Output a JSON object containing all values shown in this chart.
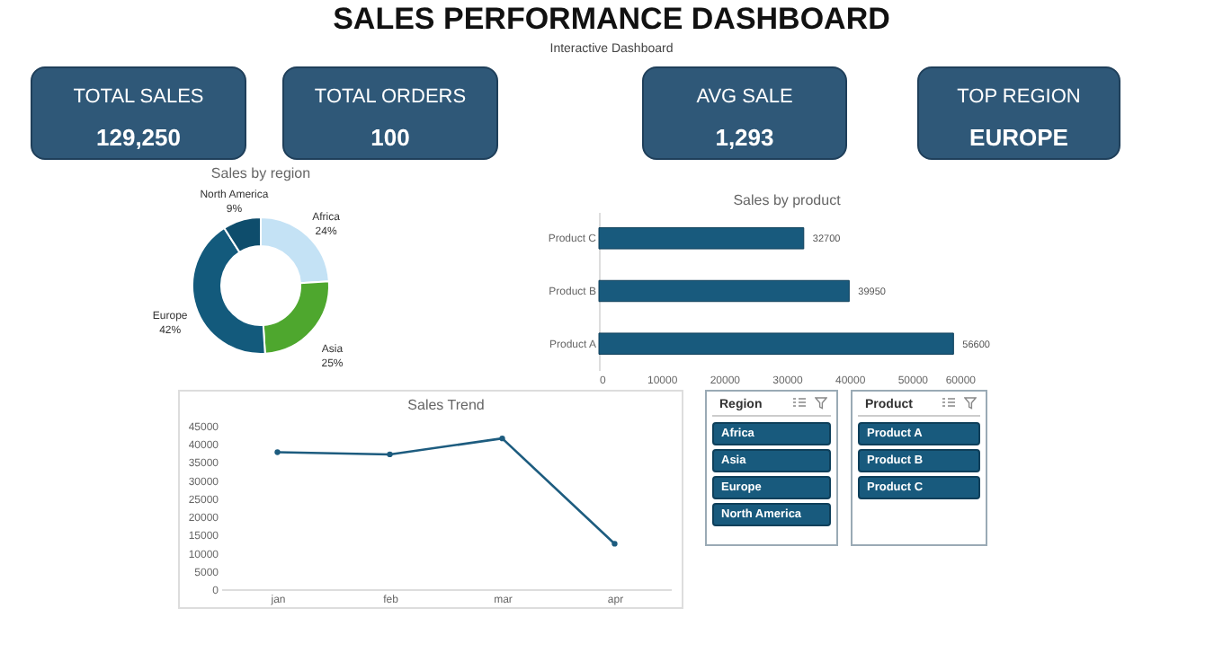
{
  "chart_data": [
    {
      "type": "other",
      "title": "SALES PERFORMANCE DASHBOARD",
      "subtitle": "Interactive Dashboard"
    },
    {
      "type": "other",
      "title": "TOTAL SALES",
      "annotations": [
        "129,250"
      ]
    },
    {
      "type": "other",
      "title": "TOTAL ORDERS",
      "annotations": [
        "100"
      ]
    },
    {
      "type": "other",
      "title": "AVG SALE",
      "annotations": [
        "1,293"
      ]
    },
    {
      "type": "other",
      "title": "TOP REGION",
      "annotations": [
        "EUROPE"
      ]
    },
    {
      "type": "donut",
      "title": "Sales by  region",
      "categories": [
        "Africa",
        "Asia",
        "Europe",
        "North America"
      ],
      "values": [
        24,
        25,
        42,
        9
      ],
      "value_labels": [
        "24%",
        "25%",
        "42%",
        "9%"
      ],
      "colors": [
        "#c4e2f5",
        "#4ea72e",
        "#135a7c",
        "#0e4d6c"
      ]
    },
    {
      "type": "bar",
      "title": "Sales by product",
      "orientation": "horizontal",
      "categories": [
        "Product C",
        "Product B",
        "Product A"
      ],
      "values": [
        32700,
        39950,
        56600
      ],
      "color": "#185a7d",
      "xlim": [
        0,
        60000
      ],
      "xticks": [
        0,
        10000,
        20000,
        30000,
        40000,
        50000,
        60000
      ],
      "data_labels": true
    },
    {
      "type": "line",
      "title": "Sales Trend",
      "categories": [
        "jan",
        "feb",
        "mar",
        "apr"
      ],
      "values": [
        37700,
        37100,
        41500,
        12500
      ],
      "color": "#1d5c7f",
      "ylim": [
        0,
        45000
      ],
      "yticks": [
        0,
        5000,
        10000,
        15000,
        20000,
        25000,
        30000,
        35000,
        40000,
        45000
      ],
      "marker": "circle",
      "line_style": "solid"
    },
    {
      "type": "other",
      "title": "Region",
      "annotations": [
        "Africa",
        "Asia",
        "Europe",
        "North America"
      ]
    },
    {
      "type": "other",
      "title": "Product",
      "annotations": [
        "Product A",
        "Product B",
        "Product C"
      ]
    }
  ]
}
